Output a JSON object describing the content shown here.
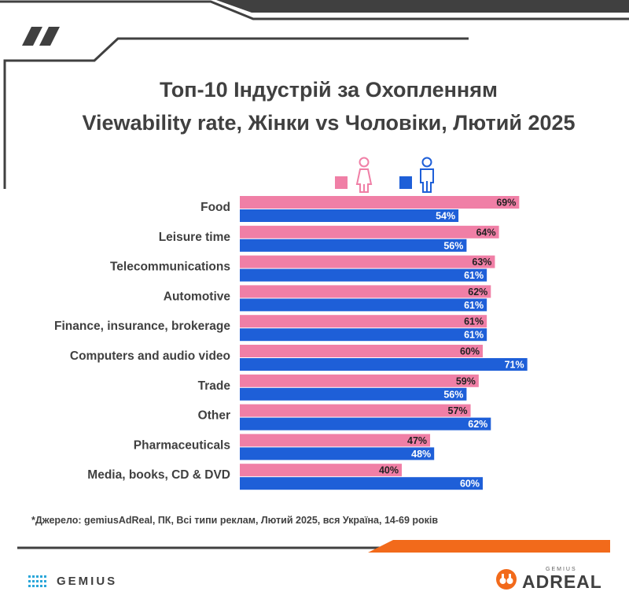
{
  "header": {
    "title_line1": "Топ-10 Індустрій за Охопленням",
    "title_line2": "Viewability rate, Жінки vs Чоловіки, Лютий 2025"
  },
  "legend": {
    "women_icon": "female-icon",
    "men_icon": "male-icon"
  },
  "colors": {
    "women": "#F07FA6",
    "men": "#1E5FD8",
    "dark": "#404040",
    "accent": "#F26A1B"
  },
  "chart_data": {
    "type": "bar",
    "orientation": "horizontal",
    "categories": [
      "Food",
      "Leisure time",
      "Telecommunications",
      "Automotive",
      "Finance, insurance, brokerage",
      "Computers and audio video",
      "Trade",
      "Other",
      "Pharmaceuticals",
      "Media, books, CD & DVD"
    ],
    "series": [
      {
        "values": [
          69,
          64,
          63,
          62,
          61,
          60,
          59,
          57,
          47,
          40
        ],
        "labels": [
          "69%",
          "64%",
          "63%",
          "62%",
          "61%",
          "60%",
          "59%",
          "57%",
          "47%",
          "40%"
        ]
      },
      {
        "values": [
          54,
          56,
          61,
          61,
          61,
          71,
          56,
          62,
          48,
          60
        ],
        "labels": [
          "54%",
          "56%",
          "61%",
          "61%",
          "61%",
          "71%",
          "56%",
          "62%",
          "48%",
          "60%"
        ]
      }
    ],
    "title": "",
    "xlabel": "",
    "ylabel": "",
    "xlim": [
      0,
      100
    ],
    "grid": false,
    "legend_position": "top-right"
  },
  "footer": {
    "source": "*Джерело: gemiusAdReal, ПК, Всі типи реклам, Лютий 2025, вся Україна, 14-69 років",
    "gemius_logo": "GEMIUS",
    "adreal_small": "GEMIUS",
    "adreal_logo": "ADREAL"
  }
}
